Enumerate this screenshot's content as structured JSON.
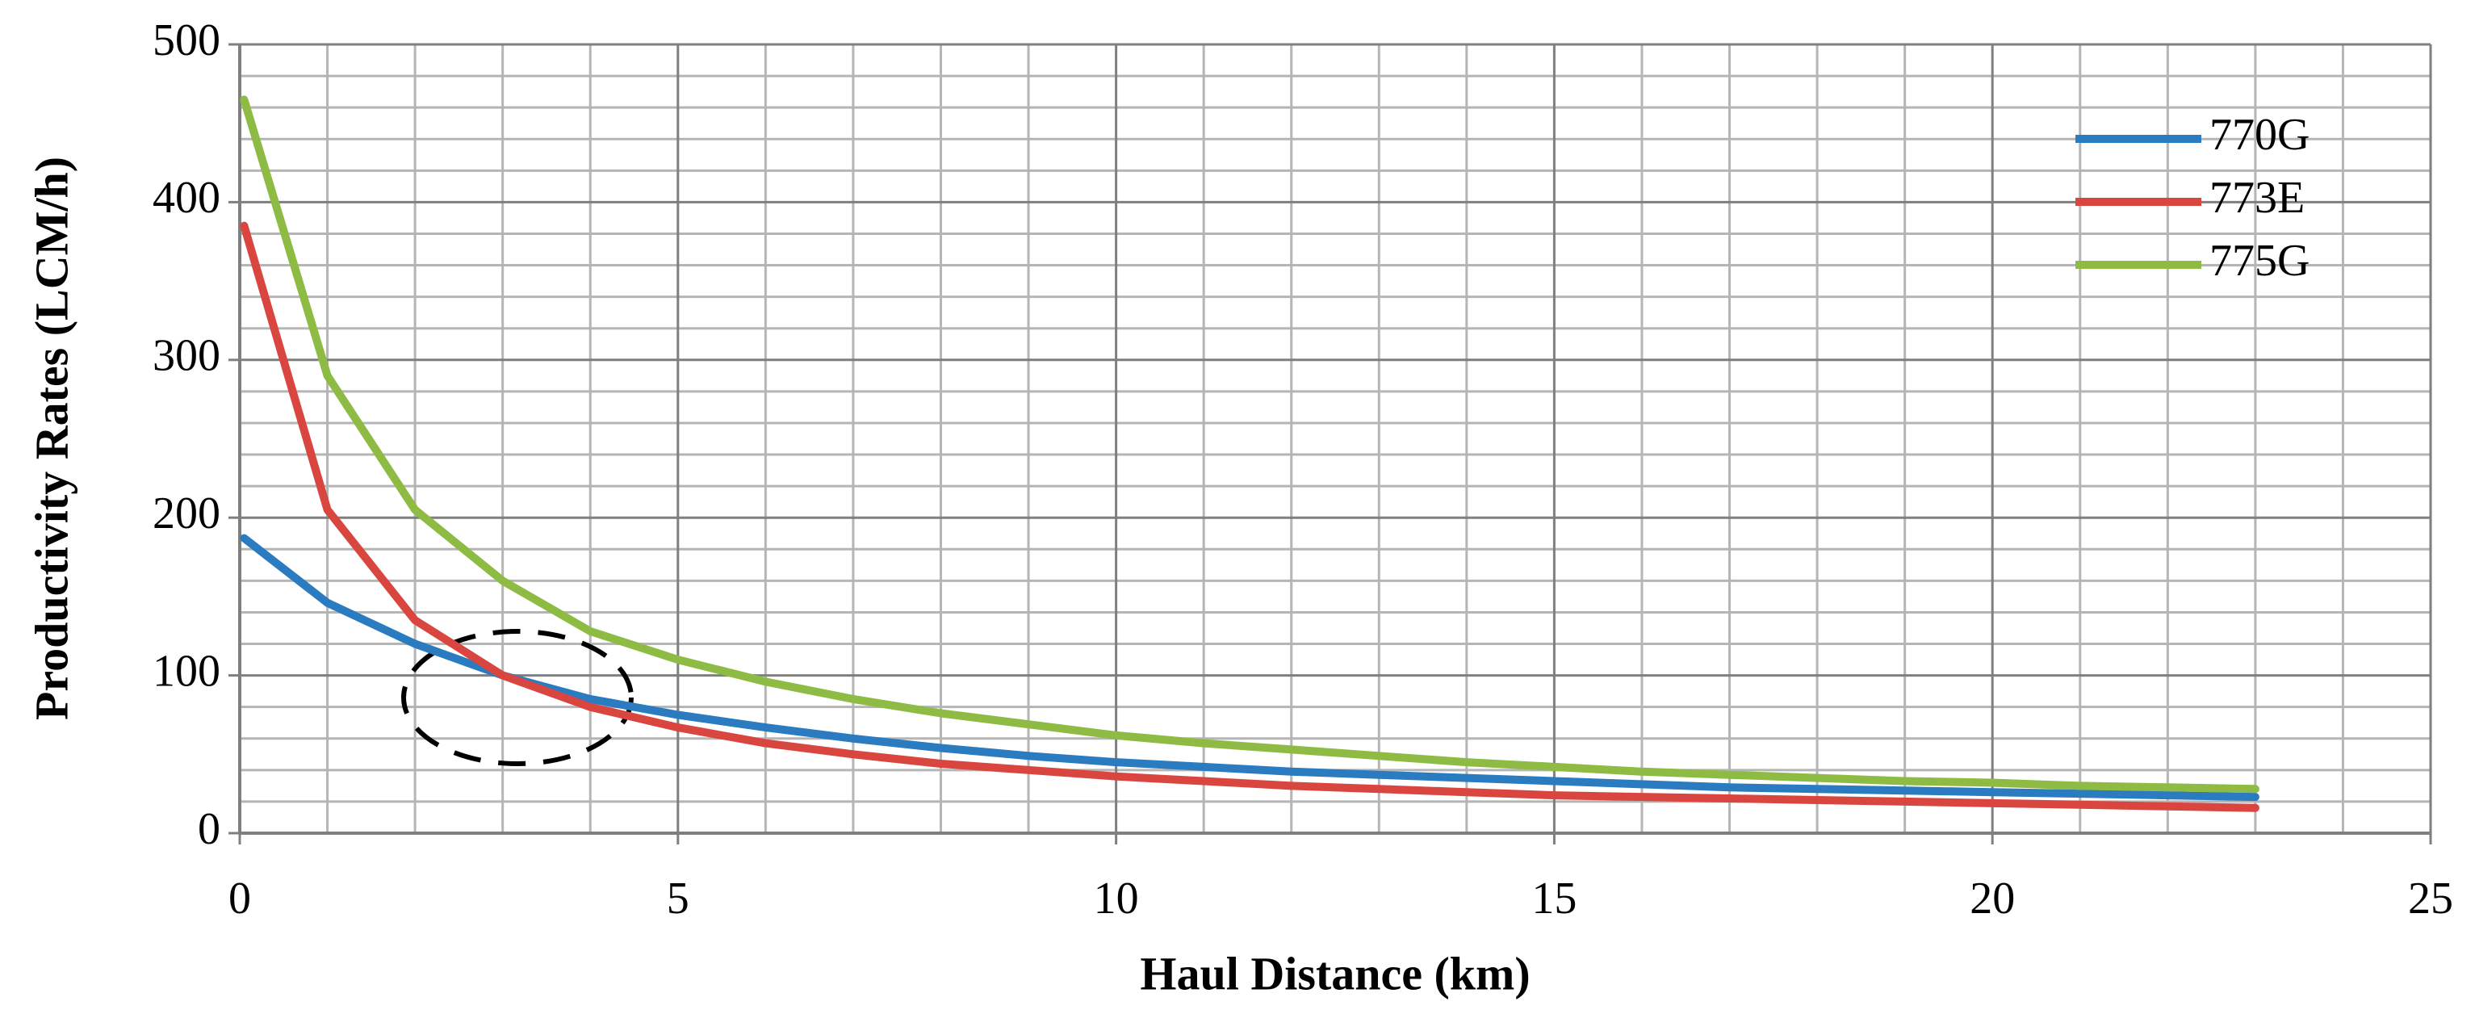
{
  "chart_data": {
    "type": "line",
    "x_label": "Haul Distance (km)",
    "y_label": "Productivity Rates (LCM/h)",
    "x": [
      0.05,
      1,
      2,
      3,
      4,
      5,
      6,
      7,
      8,
      9,
      10,
      11,
      12,
      13,
      14,
      15,
      16,
      17,
      18,
      19,
      20,
      21,
      22,
      23
    ],
    "series": [
      {
        "name": "770G",
        "color": "#2a7bbf",
        "values": [
          187,
          146,
          120,
          100,
          85,
          75,
          67,
          60,
          54,
          49,
          45,
          42,
          39,
          37,
          35,
          33,
          31,
          29,
          28,
          27,
          26,
          25,
          24,
          23
        ]
      },
      {
        "name": "773E",
        "color": "#d9463f",
        "values": [
          385,
          205,
          135,
          100,
          80,
          67,
          57,
          50,
          44,
          40,
          36,
          33,
          30,
          28,
          26,
          24,
          23,
          22,
          21,
          20,
          19,
          18,
          17,
          16
        ]
      },
      {
        "name": "775G",
        "color": "#8dbb43",
        "values": [
          465,
          290,
          205,
          160,
          128,
          110,
          96,
          85,
          76,
          69,
          62,
          57,
          53,
          49,
          45,
          42,
          39,
          37,
          35,
          33,
          32,
          30,
          29,
          28
        ]
      }
    ],
    "xlim": [
      0,
      25
    ],
    "xticks": [
      0,
      5,
      10,
      15,
      20,
      25
    ],
    "ylim": [
      0,
      500
    ],
    "yticks": [
      0,
      100,
      200,
      300,
      400,
      500
    ],
    "grid": true,
    "legend": "upper right"
  }
}
